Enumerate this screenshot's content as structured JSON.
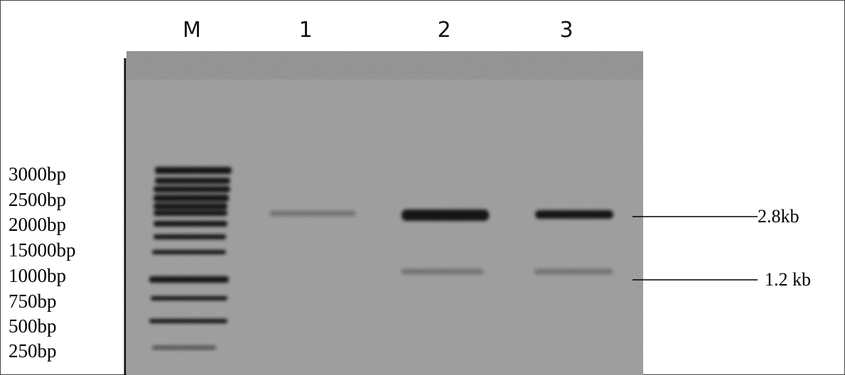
{
  "lanes": [
    "M",
    "1",
    "2",
    "3"
  ],
  "markers": [
    "3000bp",
    "2500bp",
    "2000bp",
    "15000bp",
    "1000bp",
    "750bp",
    "500bp",
    "250bp"
  ],
  "annotations": [
    "2.8kb",
    "1.2 kb"
  ]
}
